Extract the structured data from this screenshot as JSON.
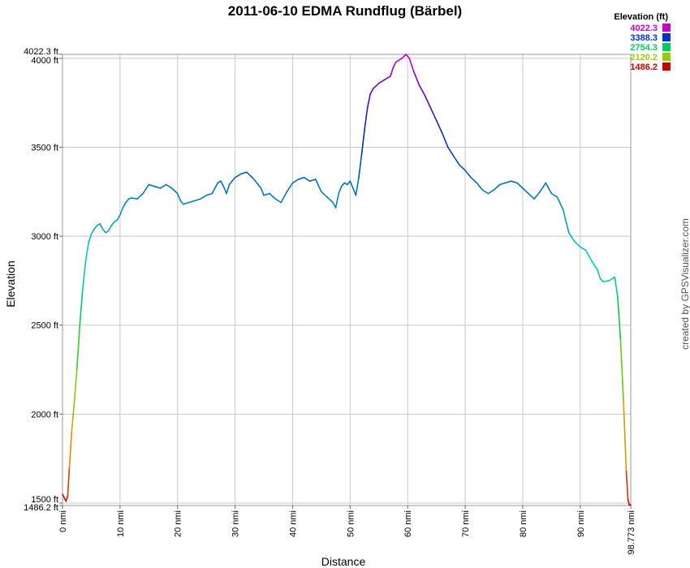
{
  "chart_data": {
    "type": "line",
    "title": "2011-06-10 EDMA Rundflug (Bärbel)",
    "xlabel": "Distance",
    "ylabel": "Elevation",
    "credit": "created by GPSVisualizer.com",
    "xlim": [
      0,
      98.773
    ],
    "ylim": [
      1486.2,
      4022.3
    ],
    "grid": true,
    "x_ticks": [
      {
        "value": 0,
        "label": "0 nmi"
      },
      {
        "value": 10,
        "label": "10 nmi"
      },
      {
        "value": 20,
        "label": "20 nmi"
      },
      {
        "value": 30,
        "label": "30 nmi"
      },
      {
        "value": 40,
        "label": "40 nmi"
      },
      {
        "value": 50,
        "label": "50 nmi"
      },
      {
        "value": 60,
        "label": "60 nmi"
      },
      {
        "value": 70,
        "label": "70 nmi"
      },
      {
        "value": 80,
        "label": "80 nmi"
      },
      {
        "value": 90,
        "label": "90 nmi"
      },
      {
        "value": 98.773,
        "label": "98.773 nmi"
      }
    ],
    "y_ticks": [
      {
        "value": 1486.2,
        "label": "1486.2 ft"
      },
      {
        "value": 1500,
        "label": "1500 ft"
      },
      {
        "value": 2000,
        "label": "2000 ft"
      },
      {
        "value": 2500,
        "label": "2500 ft"
      },
      {
        "value": 3000,
        "label": "3000 ft"
      },
      {
        "value": 3500,
        "label": "3500 ft"
      },
      {
        "value": 4000,
        "label": "4000 ft"
      },
      {
        "value": 4022.3,
        "label": "4022.3 ft"
      }
    ],
    "legend": {
      "title": "Elevation (ft)",
      "placement": "top-right",
      "entries": [
        {
          "label": "4022.3",
          "color": "#cc00cc"
        },
        {
          "label": "3388.3",
          "color": "#0033cc"
        },
        {
          "label": "2754.3",
          "color": "#00cc66"
        },
        {
          "label": "2120.2",
          "color": "#99cc00"
        },
        {
          "label": "1486.2",
          "color": "#cc0000"
        }
      ]
    },
    "series": [
      {
        "points": [
          [
            0,
            1550
          ],
          [
            0.3,
            1530
          ],
          [
            0.6,
            1510
          ],
          [
            0.9,
            1540
          ],
          [
            1.2,
            1700
          ],
          [
            1.6,
            1900
          ],
          [
            2.0,
            2050
          ],
          [
            2.5,
            2250
          ],
          [
            3.0,
            2500
          ],
          [
            3.5,
            2700
          ],
          [
            4.0,
            2850
          ],
          [
            4.5,
            2960
          ],
          [
            5.0,
            3010
          ],
          [
            5.5,
            3040
          ],
          [
            6.0,
            3060
          ],
          [
            6.5,
            3070
          ],
          [
            7.0,
            3040
          ],
          [
            7.5,
            3020
          ],
          [
            8.0,
            3030
          ],
          [
            8.5,
            3060
          ],
          [
            9.0,
            3080
          ],
          [
            9.5,
            3090
          ],
          [
            10.0,
            3120
          ],
          [
            10.5,
            3160
          ],
          [
            11.0,
            3190
          ],
          [
            11.5,
            3210
          ],
          [
            12.0,
            3215
          ],
          [
            13.0,
            3210
          ],
          [
            14.0,
            3240
          ],
          [
            15.0,
            3290
          ],
          [
            16.0,
            3280
          ],
          [
            17.0,
            3270
          ],
          [
            18.0,
            3290
          ],
          [
            19.0,
            3270
          ],
          [
            20.0,
            3240
          ],
          [
            20.5,
            3200
          ],
          [
            21.0,
            3180
          ],
          [
            22.0,
            3190
          ],
          [
            23.0,
            3200
          ],
          [
            24.0,
            3210
          ],
          [
            25.0,
            3230
          ],
          [
            26.0,
            3240
          ],
          [
            27.0,
            3300
          ],
          [
            27.5,
            3310
          ],
          [
            28.0,
            3280
          ],
          [
            28.5,
            3240
          ],
          [
            29.0,
            3290
          ],
          [
            30.0,
            3330
          ],
          [
            31.0,
            3350
          ],
          [
            32.0,
            3360
          ],
          [
            33.0,
            3330
          ],
          [
            34.0,
            3290
          ],
          [
            34.5,
            3270
          ],
          [
            35.0,
            3230
          ],
          [
            36.0,
            3240
          ],
          [
            37.0,
            3210
          ],
          [
            38.0,
            3190
          ],
          [
            39.0,
            3250
          ],
          [
            40.0,
            3300
          ],
          [
            41.0,
            3320
          ],
          [
            42.0,
            3330
          ],
          [
            43.0,
            3310
          ],
          [
            44.0,
            3320
          ],
          [
            45.0,
            3250
          ],
          [
            46.0,
            3220
          ],
          [
            47.0,
            3190
          ],
          [
            47.5,
            3160
          ],
          [
            48.0,
            3240
          ],
          [
            48.5,
            3280
          ],
          [
            49.0,
            3300
          ],
          [
            49.5,
            3290
          ],
          [
            50.0,
            3310
          ],
          [
            50.5,
            3270
          ],
          [
            51.0,
            3230
          ],
          [
            51.5,
            3330
          ],
          [
            52.0,
            3460
          ],
          [
            52.5,
            3600
          ],
          [
            53.0,
            3720
          ],
          [
            53.5,
            3800
          ],
          [
            54.0,
            3830
          ],
          [
            55.0,
            3860
          ],
          [
            56.0,
            3880
          ],
          [
            57.0,
            3900
          ],
          [
            57.5,
            3950
          ],
          [
            58.0,
            3980
          ],
          [
            59.0,
            4000
          ],
          [
            59.7,
            4022.3
          ],
          [
            60.3,
            4000
          ],
          [
            61.0,
            3930
          ],
          [
            62.0,
            3850
          ],
          [
            63.0,
            3790
          ],
          [
            64.0,
            3720
          ],
          [
            65.0,
            3650
          ],
          [
            66.0,
            3580
          ],
          [
            67.0,
            3500
          ],
          [
            68.0,
            3450
          ],
          [
            69.0,
            3400
          ],
          [
            70.0,
            3370
          ],
          [
            71.0,
            3330
          ],
          [
            72.0,
            3300
          ],
          [
            73.0,
            3260
          ],
          [
            74.0,
            3240
          ],
          [
            75.0,
            3260
          ],
          [
            76.0,
            3290
          ],
          [
            77.0,
            3300
          ],
          [
            78.0,
            3310
          ],
          [
            79.0,
            3300
          ],
          [
            80.0,
            3270
          ],
          [
            81.0,
            3240
          ],
          [
            82.0,
            3210
          ],
          [
            83.0,
            3250
          ],
          [
            84.0,
            3300
          ],
          [
            85.0,
            3240
          ],
          [
            86.0,
            3220
          ],
          [
            87.0,
            3150
          ],
          [
            88.0,
            3020
          ],
          [
            89.0,
            2970
          ],
          [
            90.0,
            2940
          ],
          [
            91.0,
            2920
          ],
          [
            92.0,
            2860
          ],
          [
            93.0,
            2810
          ],
          [
            93.5,
            2760
          ],
          [
            94.0,
            2745
          ],
          [
            95.0,
            2750
          ],
          [
            96.0,
            2770
          ],
          [
            96.5,
            2660
          ],
          [
            97.0,
            2420
          ],
          [
            97.5,
            2080
          ],
          [
            98.0,
            1680
          ],
          [
            98.3,
            1520
          ],
          [
            98.5,
            1490
          ],
          [
            98.773,
            1490
          ]
        ]
      }
    ]
  }
}
